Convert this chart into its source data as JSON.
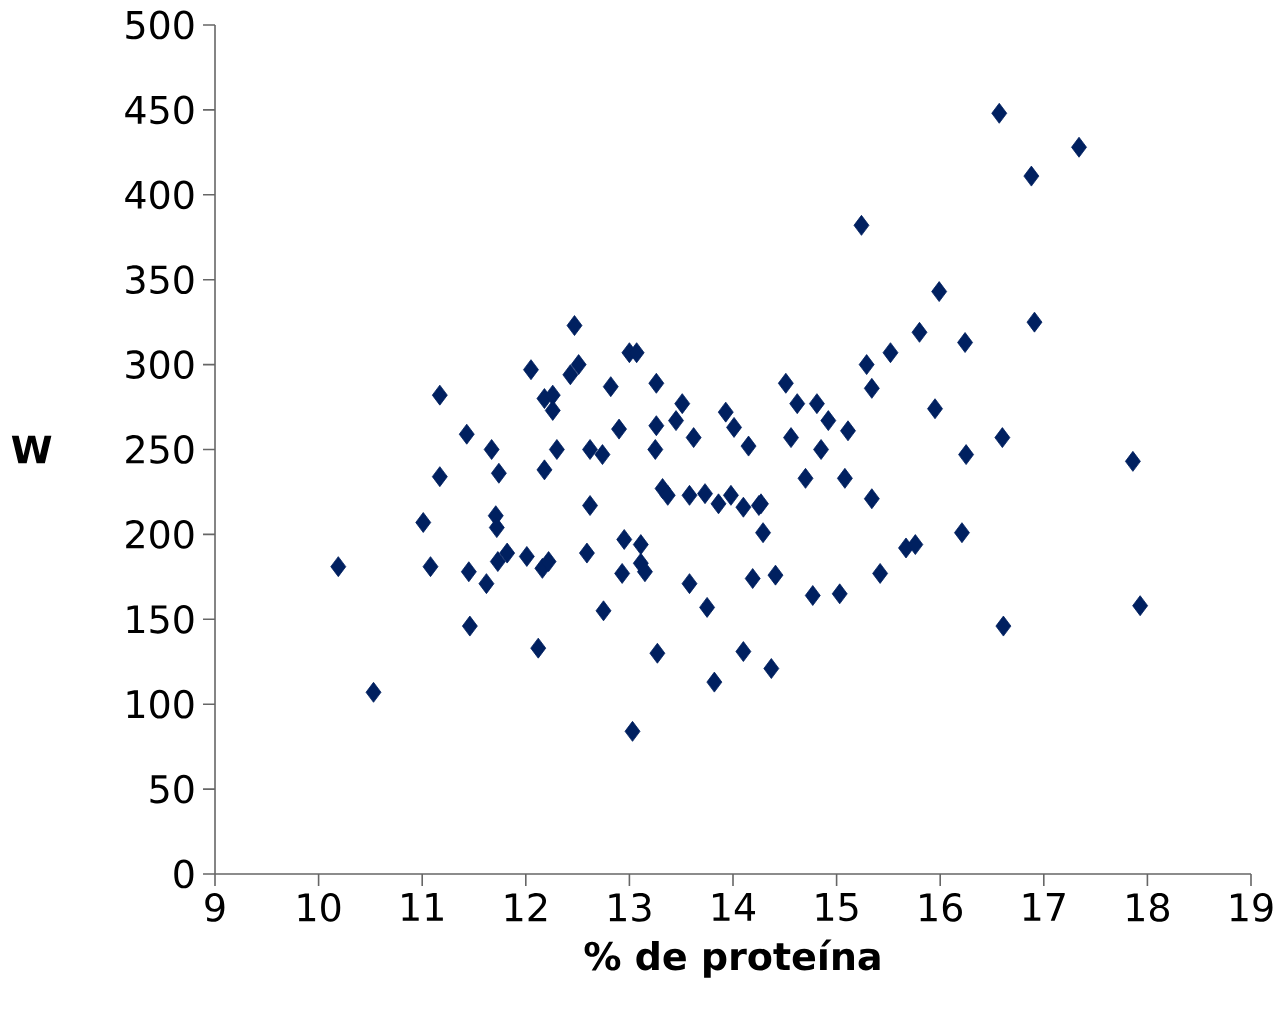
{
  "chart_data": {
    "type": "scatter",
    "xlabel": "% de proteína",
    "ylabel": "W",
    "xlim": [
      9,
      19
    ],
    "xticks": [
      9,
      10,
      11,
      12,
      13,
      14,
      15,
      16,
      17,
      18,
      19
    ],
    "ylim": [
      0,
      500
    ],
    "yticks": [
      0,
      50,
      100,
      150,
      200,
      250,
      300,
      350,
      400,
      450,
      500
    ],
    "grid": false,
    "marker": "diamond",
    "series": [
      {
        "color": "#002060",
        "x": [
          10.19,
          10.53,
          11.01,
          11.08,
          11.17,
          11.17,
          11.43,
          11.45,
          11.46,
          11.62,
          11.67,
          11.71,
          11.72,
          11.74,
          11.73,
          11.82,
          12.01,
          12.05,
          12.12,
          12.16,
          12.18,
          12.18,
          12.22,
          12.26,
          12.26,
          12.3,
          12.43,
          12.47,
          12.51,
          12.59,
          12.62,
          12.62,
          12.74,
          12.75,
          12.82,
          12.9,
          12.93,
          12.95,
          13.0,
          13.03,
          13.07,
          13.11,
          13.11,
          13.15,
          13.26,
          13.26,
          13.25,
          13.27,
          13.32,
          13.37,
          13.45,
          13.51,
          13.58,
          13.58,
          13.62,
          13.73,
          13.75,
          13.82,
          13.86,
          13.93,
          13.98,
          14.01,
          14.1,
          14.1,
          14.15,
          14.19,
          14.25,
          14.27,
          14.29,
          14.37,
          14.41,
          14.51,
          14.56,
          14.62,
          14.7,
          14.77,
          14.81,
          14.85,
          14.92,
          15.03,
          15.08,
          15.11,
          15.24,
          15.29,
          15.34,
          15.34,
          15.42,
          15.52,
          15.67,
          15.76,
          15.8,
          15.95,
          15.99,
          16.21,
          16.24,
          16.25,
          16.57,
          16.6,
          16.61,
          16.88,
          16.91,
          17.34,
          17.86,
          17.93
        ],
        "values": [
          181,
          107,
          207,
          181,
          282,
          234,
          259,
          178,
          146,
          171,
          250,
          211,
          204,
          236,
          184,
          189,
          187,
          297,
          133,
          180,
          238,
          280,
          184,
          282,
          273,
          250,
          294,
          323,
          300,
          189,
          217,
          250,
          247,
          155,
          287,
          262,
          177,
          197,
          307,
          84,
          307,
          194,
          183,
          178,
          289,
          264,
          250,
          130,
          227,
          223,
          267,
          277,
          171,
          223,
          257,
          224,
          157,
          113,
          218,
          272,
          223,
          263,
          216,
          131,
          252,
          174,
          217,
          218,
          201,
          121,
          176,
          289,
          257,
          277,
          233,
          164,
          277,
          250,
          267,
          165,
          233,
          261,
          382,
          300,
          221,
          286,
          177,
          307,
          192,
          194,
          319,
          274,
          343,
          201,
          313,
          247,
          448,
          257,
          146,
          411,
          325,
          428,
          243,
          158
        ]
      }
    ]
  }
}
